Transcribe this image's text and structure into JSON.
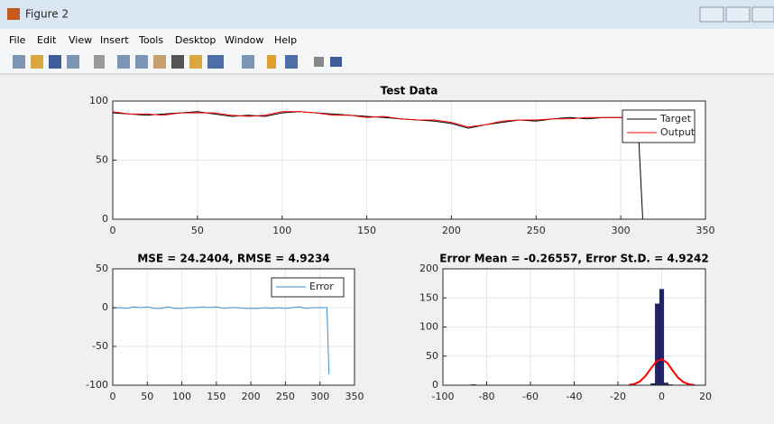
{
  "window": {
    "title": "Figure 2",
    "menu": [
      "File",
      "Edit",
      "View",
      "Insert",
      "Tools",
      "Desktop",
      "Window",
      "Help"
    ]
  },
  "chart_data": [
    {
      "type": "line",
      "title": "Test Data",
      "x": [
        0,
        10,
        20,
        30,
        40,
        50,
        60,
        70,
        80,
        90,
        100,
        110,
        120,
        130,
        140,
        150,
        160,
        170,
        180,
        190,
        200,
        210,
        220,
        230,
        240,
        250,
        260,
        270,
        280,
        290,
        300,
        310,
        313
      ],
      "series": [
        {
          "name": "Target",
          "color": "#000000",
          "values": [
            90,
            89,
            88,
            89,
            90,
            91,
            89,
            87,
            88,
            87,
            90,
            91,
            90,
            89,
            88,
            87,
            86,
            85,
            84,
            83,
            81,
            77,
            80,
            82,
            84,
            83,
            85,
            86,
            85,
            86,
            86,
            86,
            0
          ]
        },
        {
          "name": "Output",
          "color": "#ff0000",
          "values": [
            91,
            89,
            89,
            88,
            90,
            90,
            90,
            88,
            87,
            88,
            91,
            91,
            90,
            88,
            88,
            86,
            87,
            85,
            84,
            84,
            82,
            78,
            80,
            83,
            84,
            84,
            85,
            85,
            86,
            86,
            86,
            86,
            null
          ]
        }
      ],
      "xlim": [
        0,
        350
      ],
      "xticks": [
        0,
        50,
        100,
        150,
        200,
        250,
        300,
        350
      ],
      "ylim": [
        0,
        100
      ],
      "yticks": [
        0,
        50,
        100
      ],
      "grid": true,
      "legend": "northeast"
    },
    {
      "type": "line",
      "title": "MSE = 24.2404, RMSE = 4.9234",
      "x": [
        0,
        10,
        20,
        30,
        40,
        50,
        60,
        70,
        80,
        90,
        100,
        110,
        120,
        130,
        140,
        150,
        160,
        170,
        180,
        190,
        200,
        210,
        220,
        230,
        240,
        250,
        260,
        270,
        280,
        290,
        300,
        310,
        313
      ],
      "series": [
        {
          "name": "Error",
          "color": "#3a8fd0",
          "values": [
            -1,
            0,
            -1,
            1,
            0,
            1,
            -1,
            -1,
            1,
            -1,
            -1,
            0,
            0,
            1,
            0,
            1,
            -1,
            0,
            0,
            -1,
            -1,
            -1,
            0,
            -1,
            0,
            -1,
            0,
            1,
            -1,
            0,
            0,
            0,
            -86
          ]
        }
      ],
      "xlim": [
        0,
        350
      ],
      "xticks": [
        0,
        50,
        100,
        150,
        200,
        250,
        300,
        350
      ],
      "ylim": [
        -100,
        50
      ],
      "yticks": [
        -100,
        -50,
        0,
        50
      ],
      "grid": true,
      "legend": "northeast"
    },
    {
      "type": "histogram",
      "title": "Error Mean = -0.26557, Error St.D. = 4.9242",
      "bins": [
        -87,
        -85,
        -83,
        -81,
        -79,
        -77,
        -75,
        -73,
        -71,
        -69,
        -67,
        -65,
        -63,
        -61,
        -59,
        -57,
        -55,
        -53,
        -51,
        -49,
        -47,
        -45,
        -43,
        -41,
        -39,
        -37,
        -35,
        -33,
        -31,
        -29,
        -27,
        -25,
        -23,
        -21,
        -19,
        -17,
        -15,
        -13,
        -11,
        -9,
        -7,
        -5,
        -3,
        -1,
        1,
        3,
        5
      ],
      "values": [
        1,
        0,
        0,
        0,
        0,
        0,
        0,
        0,
        0,
        0,
        0,
        0,
        0,
        0,
        0,
        0,
        0,
        0,
        0,
        0,
        0,
        0,
        0,
        0,
        0,
        0,
        0,
        0,
        0,
        0,
        0,
        0,
        0,
        0,
        0,
        0,
        0,
        0,
        0,
        0,
        0,
        3,
        140,
        165,
        4,
        1
      ],
      "color": "#24246e",
      "fit_curve": {
        "color": "#ff0000",
        "x": [
          -15,
          -12.5,
          -10,
          -7.5,
          -5,
          -2.5,
          0,
          2.5,
          5,
          7.5,
          10,
          12.5,
          15
        ],
        "values": [
          0.5,
          2.1,
          6.3,
          15.3,
          28.4,
          40.6,
          45,
          38.5,
          25.4,
          12.9,
          5.1,
          1.5,
          0.4
        ]
      },
      "xlim": [
        -100,
        20
      ],
      "xticks": [
        -100,
        -80,
        -60,
        -40,
        -20,
        0,
        20
      ],
      "ylim": [
        0,
        200
      ],
      "yticks": [
        0,
        50,
        100,
        150,
        200
      ],
      "grid": true
    }
  ]
}
